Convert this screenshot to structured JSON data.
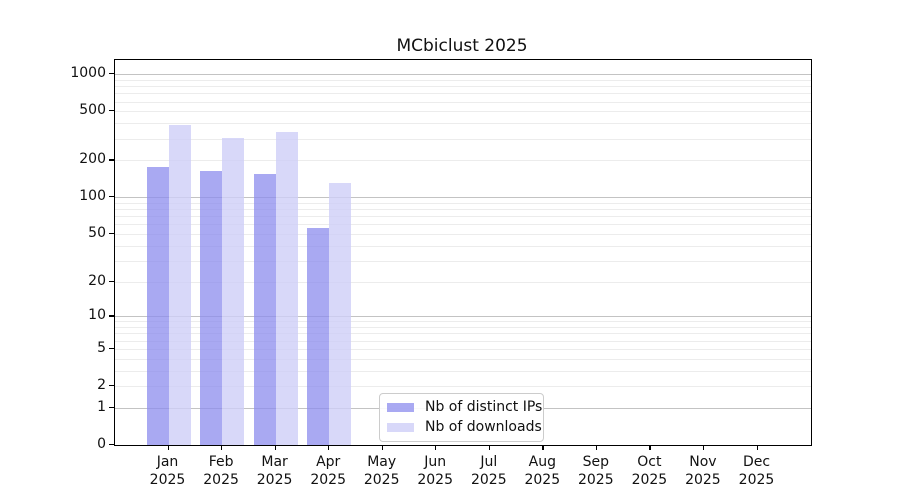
{
  "chart_data": {
    "type": "bar",
    "title": "MCbiclust 2025",
    "categories": [
      "Jan",
      "Feb",
      "Mar",
      "Apr",
      "May",
      "Jun",
      "Jul",
      "Aug",
      "Sep",
      "Oct",
      "Nov",
      "Dec"
    ],
    "year_label": "2025",
    "series": [
      {
        "name": "Nb of distinct IPs",
        "color": "rgba(140,140,238,0.75)",
        "values": [
          175,
          163,
          155,
          56,
          0,
          0,
          0,
          0,
          0,
          0,
          0,
          0
        ]
      },
      {
        "name": "Nb of downloads",
        "color": "rgba(206,206,248,0.80)",
        "values": [
          385,
          305,
          338,
          130,
          0,
          0,
          0,
          0,
          0,
          0,
          0,
          0
        ]
      }
    ],
    "xlabel": "",
    "ylabel": "",
    "yscale": "log1p",
    "ylim": [
      0,
      1300
    ],
    "yticks": [
      1000,
      500,
      200,
      100,
      50,
      20,
      10,
      5,
      2,
      1,
      0
    ],
    "major_gridlines": [
      1,
      10,
      100,
      1000
    ],
    "minor_gridlines": [
      2,
      3,
      4,
      5,
      6,
      7,
      8,
      9,
      20,
      30,
      40,
      50,
      60,
      70,
      80,
      90,
      200,
      300,
      400,
      500,
      600,
      700,
      800,
      900
    ],
    "grid": true,
    "legend_position": "lower center"
  }
}
